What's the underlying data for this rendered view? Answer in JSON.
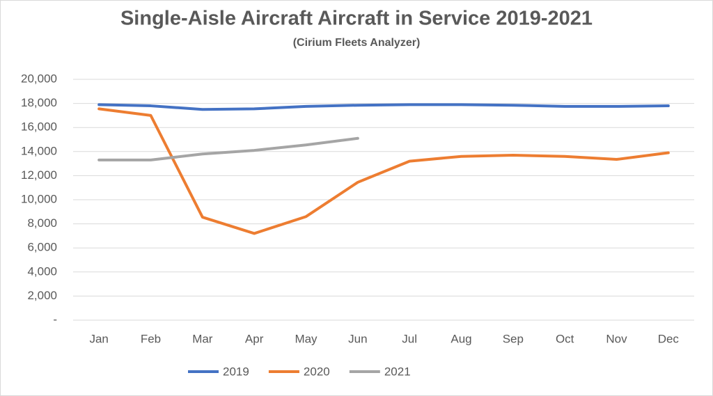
{
  "chart_data": {
    "type": "line",
    "title": "Single-Aisle Aircraft Aircraft in Service 2019-2021",
    "subtitle": "(Cirium Fleets Analyzer)",
    "categories": [
      "Jan",
      "Feb",
      "Mar",
      "Apr",
      "May",
      "Jun",
      "Jul",
      "Aug",
      "Sep",
      "Oct",
      "Nov",
      "Dec"
    ],
    "series": [
      {
        "name": "2019",
        "color": "#4472c4",
        "values": [
          17900,
          17800,
          17500,
          17550,
          17750,
          17850,
          17900,
          17900,
          17850,
          17750,
          17750,
          17800
        ]
      },
      {
        "name": "2020",
        "color": "#ed7d31",
        "values": [
          17550,
          17000,
          8550,
          7200,
          8600,
          11450,
          13200,
          13600,
          13700,
          13600,
          13350,
          13900
        ]
      },
      {
        "name": "2021",
        "color": "#a5a5a5",
        "values": [
          13300,
          13300,
          13800,
          14100,
          14550,
          15100,
          null,
          null,
          null,
          null,
          null,
          null
        ]
      }
    ],
    "ylim": [
      0,
      20000
    ],
    "yticks": [
      {
        "value": 0,
        "label": "-"
      },
      {
        "value": 2000,
        "label": "2,000"
      },
      {
        "value": 4000,
        "label": "4,000"
      },
      {
        "value": 6000,
        "label": "6,000"
      },
      {
        "value": 8000,
        "label": "8,000"
      },
      {
        "value": 10000,
        "label": "10,000"
      },
      {
        "value": 12000,
        "label": "12,000"
      },
      {
        "value": 14000,
        "label": "14,000"
      },
      {
        "value": 16000,
        "label": "16,000"
      },
      {
        "value": 18000,
        "label": "18,000"
      },
      {
        "value": 20000,
        "label": "20,000"
      }
    ],
    "grid": true,
    "legend": "bottom"
  }
}
